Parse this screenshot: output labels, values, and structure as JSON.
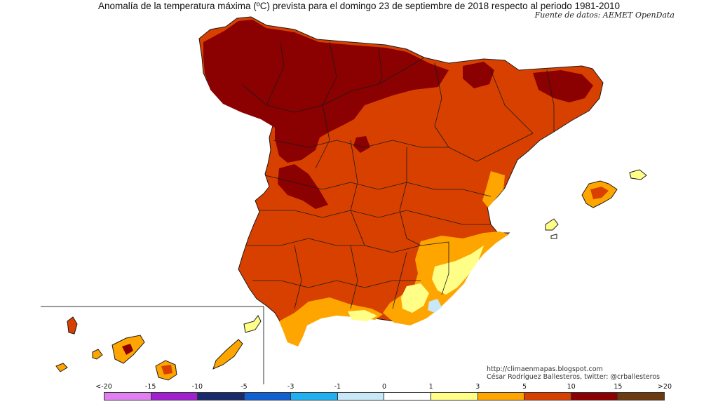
{
  "title": "Anomalía de la temperatura máxima (ºC) prevista para el domingo 23 de septiembre de 2018 respecto al periodo 1981-2010",
  "source": "Fuente de datos: AEMET OpenData",
  "credits": {
    "blog": "http://climaenmapas.blogspot.com",
    "author": "César Rodríguez Ballesteros, twitter: @crballesteros"
  },
  "legend": {
    "ticks": [
      "<-20",
      "-15",
      "-10",
      "-5",
      "-3",
      "-1",
      "0",
      "1",
      "3",
      "5",
      "10",
      "15",
      ">20"
    ],
    "colors": [
      "#e080f0",
      "#a020d0",
      "#1a2a6a",
      "#1060d0",
      "#20b0f0",
      "#c8e8f8",
      "#ffffff",
      "#ffff88",
      "#ffa500",
      "#d84000",
      "#8b0000",
      "#6b3a10"
    ]
  },
  "map_colors": {
    "mainland": "#d84000",
    "hot": "#8b0000",
    "warm": "#ffa500",
    "mild": "#ffff88",
    "cool": "#c8e8f8",
    "border": "#1a1a1a"
  }
}
